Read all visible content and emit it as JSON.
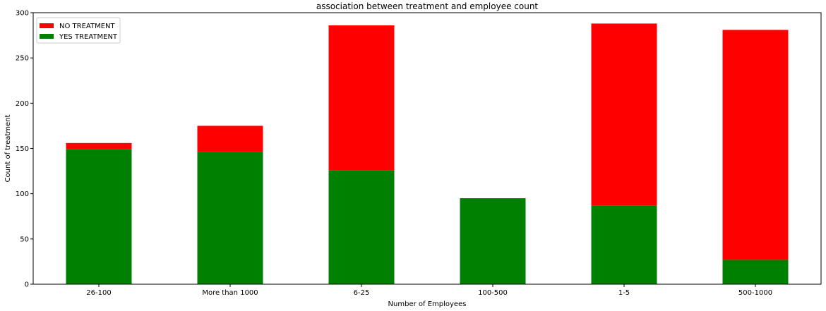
{
  "chart_data": {
    "type": "bar",
    "stacked": true,
    "title": "association between treatment and employee count",
    "xlabel": "Number of Employees",
    "ylabel": "Count of treatment",
    "ylim": [
      0,
      300
    ],
    "yticks": [
      0,
      50,
      100,
      150,
      200,
      250,
      300
    ],
    "categories": [
      "26-100",
      "More than 1000",
      "6-25",
      "100-500",
      "1-5",
      "500-1000"
    ],
    "series": [
      {
        "name": "NO TREATMENT",
        "color": "#ff0000",
        "values": [
          7,
          29,
          160,
          0,
          201,
          254
        ]
      },
      {
        "name": "YES TREATMENT",
        "color": "#008000",
        "values": [
          149,
          146,
          126,
          95,
          87,
          27
        ]
      }
    ],
    "stack_order": [
      "YES TREATMENT",
      "NO TREATMENT"
    ],
    "grid": false,
    "legend_position": "top-left"
  }
}
